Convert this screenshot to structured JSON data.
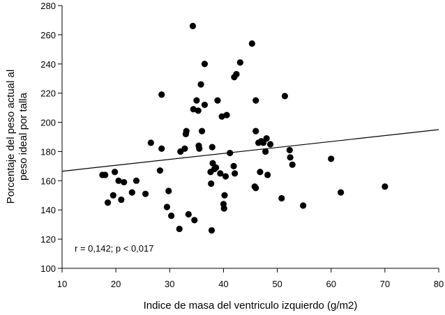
{
  "chart_data": {
    "type": "scatter",
    "xlabel": "Indice de masa del ventriculo izquierdo (g/m2)",
    "ylabel_lines": [
      "Porcentaje del peso actual al",
      "peso ideal por talla"
    ],
    "annotation": "r = 0,142; p < 0,017",
    "xlim": [
      10,
      80
    ],
    "ylim": [
      100,
      280
    ],
    "xticks": [
      10,
      20,
      30,
      40,
      50,
      60,
      70,
      80
    ],
    "yticks": [
      100,
      120,
      140,
      160,
      180,
      200,
      220,
      240,
      260,
      280
    ],
    "grid": false,
    "marker_color": "#000000",
    "trend_line": {
      "x": [
        10,
        80
      ],
      "y": [
        166.5,
        195
      ]
    },
    "points": [
      [
        17.5,
        164
      ],
      [
        18,
        164
      ],
      [
        18.5,
        145
      ],
      [
        19.5,
        150
      ],
      [
        19.8,
        166
      ],
      [
        20.5,
        160
      ],
      [
        21,
        147
      ],
      [
        21.5,
        159
      ],
      [
        23,
        152
      ],
      [
        23.8,
        160
      ],
      [
        25.5,
        151
      ],
      [
        26.5,
        186
      ],
      [
        28.2,
        167
      ],
      [
        28.5,
        182
      ],
      [
        28.5,
        219
      ],
      [
        29.5,
        142
      ],
      [
        29.8,
        153
      ],
      [
        30.3,
        136
      ],
      [
        31.8,
        127
      ],
      [
        32,
        180
      ],
      [
        32.8,
        182
      ],
      [
        33,
        192
      ],
      [
        33.1,
        194
      ],
      [
        33.5,
        137
      ],
      [
        34.3,
        266
      ],
      [
        34.4,
        209
      ],
      [
        34.6,
        133
      ],
      [
        35,
        215
      ],
      [
        35.3,
        208
      ],
      [
        35.4,
        184
      ],
      [
        35.5,
        182
      ],
      [
        35.8,
        226
      ],
      [
        36,
        194
      ],
      [
        36.5,
        240
      ],
      [
        36.5,
        212
      ],
      [
        37.6,
        166
      ],
      [
        37.7,
        158
      ],
      [
        37.8,
        126
      ],
      [
        37.9,
        183
      ],
      [
        38,
        172
      ],
      [
        38.3,
        168
      ],
      [
        38.6,
        169
      ],
      [
        38.9,
        215
      ],
      [
        39.4,
        165
      ],
      [
        39.7,
        204
      ],
      [
        40,
        144
      ],
      [
        40.1,
        141
      ],
      [
        40.2,
        150
      ],
      [
        40.4,
        163
      ],
      [
        40.6,
        205
      ],
      [
        41.2,
        179
      ],
      [
        41.9,
        170
      ],
      [
        42.1,
        165
      ],
      [
        42,
        231
      ],
      [
        42.4,
        233
      ],
      [
        43.1,
        241
      ],
      [
        45.3,
        254
      ],
      [
        45.8,
        156
      ],
      [
        46,
        155
      ],
      [
        46,
        215
      ],
      [
        46,
        194
      ],
      [
        46.5,
        186
      ],
      [
        46.8,
        166
      ],
      [
        47,
        187
      ],
      [
        47.4,
        186
      ],
      [
        47.8,
        180
      ],
      [
        48,
        189
      ],
      [
        48.2,
        164
      ],
      [
        48.7,
        185
      ],
      [
        50.8,
        148
      ],
      [
        51.4,
        218
      ],
      [
        52.3,
        181
      ],
      [
        52.4,
        176
      ],
      [
        52.8,
        171
      ],
      [
        54.8,
        143
      ],
      [
        60,
        175
      ],
      [
        61.8,
        152
      ],
      [
        70,
        156
      ]
    ]
  }
}
